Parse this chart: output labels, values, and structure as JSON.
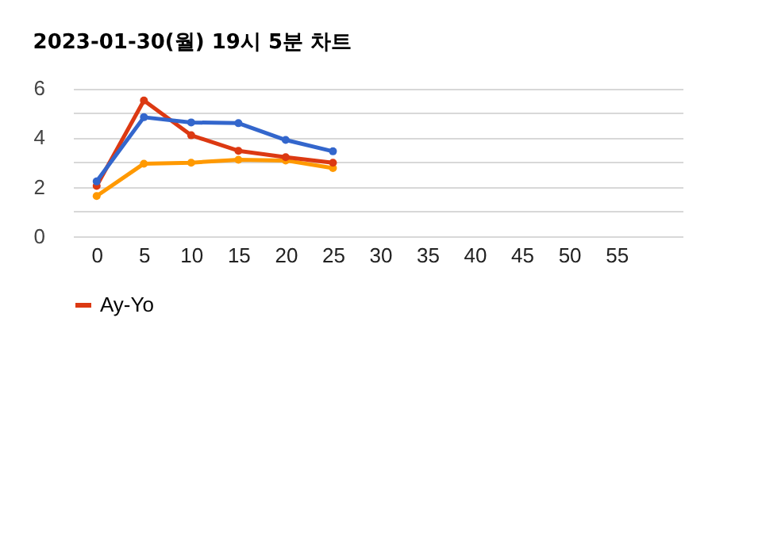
{
  "chart_data": {
    "type": "line",
    "title": "2023-01-30(월) 19시 5분 차트",
    "x": [
      0,
      5,
      10,
      15,
      20,
      25
    ],
    "series": [
      {
        "color": "#3366cc",
        "values": [
          2.22,
          4.82,
          4.61,
          4.58,
          3.9,
          3.44
        ]
      },
      {
        "name": "Ay-Yo",
        "color": "#dc3912",
        "values": [
          2.04,
          5.5,
          4.09,
          3.46,
          3.2,
          2.98
        ]
      },
      {
        "color": "#ff9900",
        "values": [
          1.63,
          2.94,
          2.98,
          3.1,
          3.07,
          2.76
        ]
      }
    ],
    "xlim": [
      -2.5,
      62
    ],
    "xticks": [
      0,
      5,
      10,
      15,
      20,
      25,
      30,
      35,
      40,
      45,
      50,
      55
    ],
    "ylim": [
      0,
      6.1
    ],
    "yticks": [
      0,
      {
        "value": 1,
        "label": null
      },
      2,
      {
        "value": 3,
        "label": null
      },
      4,
      {
        "value": 5,
        "label": null
      },
      6
    ],
    "grid": "y",
    "legend": "bottom",
    "marker": "circle",
    "line_style": "solid"
  }
}
